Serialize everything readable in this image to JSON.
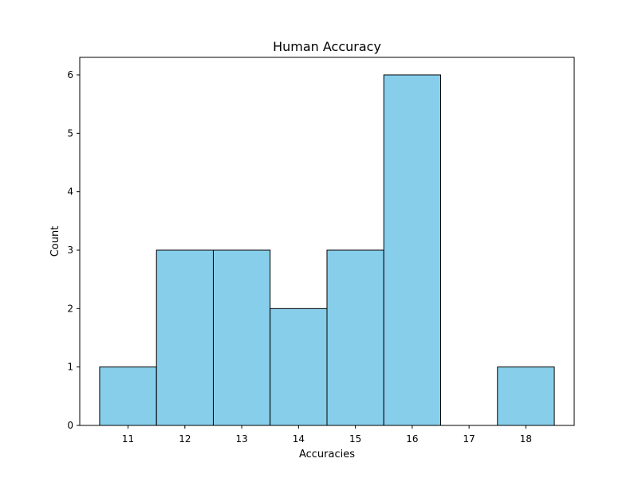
{
  "chart_data": {
    "type": "bar",
    "title": "Human Accuracy",
    "xlabel": "Accuracies",
    "ylabel": "Count",
    "categories": [
      "11",
      "12",
      "13",
      "14",
      "15",
      "16",
      "17",
      "18"
    ],
    "values": [
      1,
      3,
      3,
      2,
      3,
      6,
      0,
      1
    ],
    "xlim": [
      10.15,
      18.85
    ],
    "ylim": [
      0,
      6.3
    ],
    "x_ticks": [
      11,
      12,
      13,
      14,
      15,
      16,
      17,
      18
    ],
    "y_ticks": [
      0,
      1,
      2,
      3,
      4,
      5,
      6
    ],
    "bar_color": "#87CEEB",
    "edge_color": "#000000",
    "grid": false,
    "legend": false
  }
}
